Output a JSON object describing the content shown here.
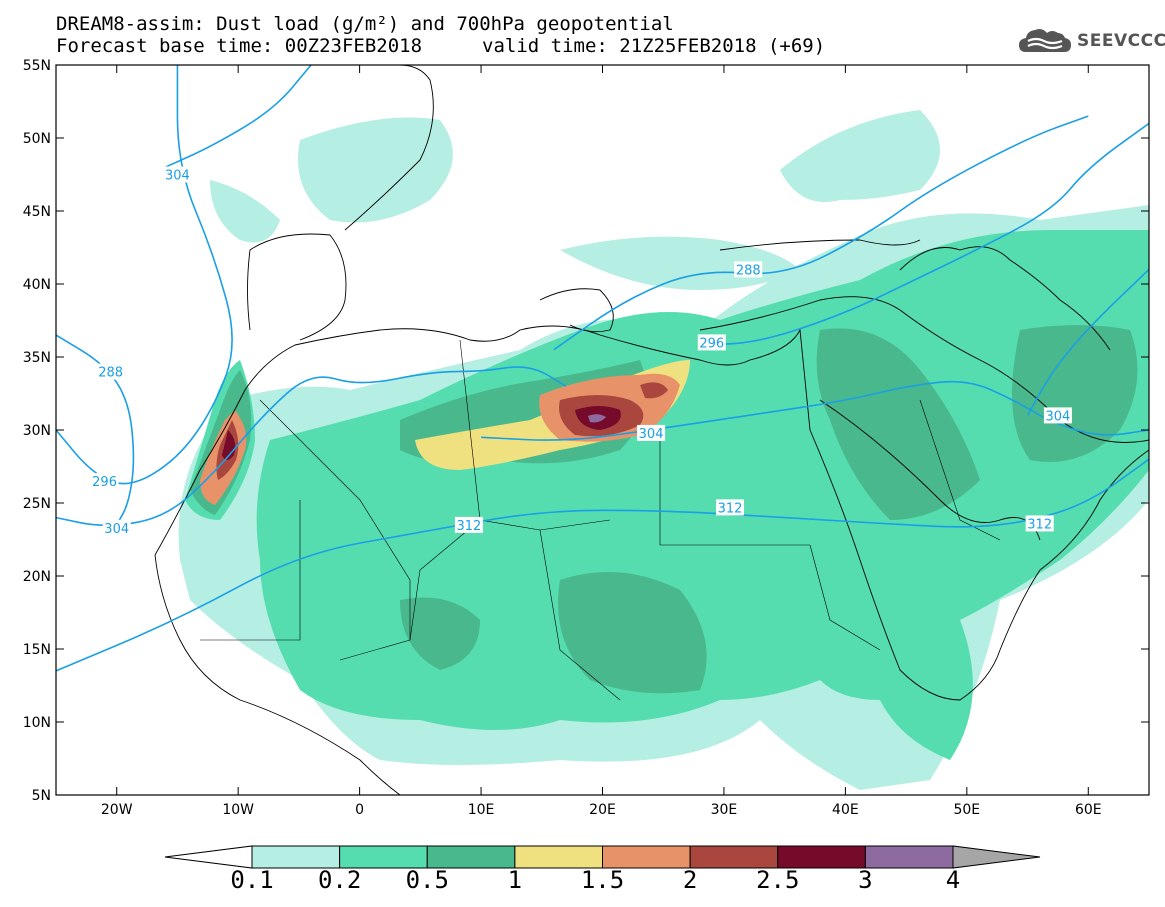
{
  "title": {
    "line1": "DREAM8-assim: Dust load (g/m²) and 700hPa geopotential",
    "line2_left": "Forecast base time: 00Z23FEB2018",
    "line2_right": "valid time: 21Z25FEB2018 (+69)"
  },
  "logo": {
    "text": "SEEVCCC",
    "icon": "cloud-icon",
    "color": "#555555"
  },
  "map": {
    "lon_range": [
      -25,
      65
    ],
    "lat_range": [
      5,
      55
    ],
    "lat_ticks": [
      {
        "value": 55,
        "label": "55N"
      },
      {
        "value": 50,
        "label": "50N"
      },
      {
        "value": 45,
        "label": "45N"
      },
      {
        "value": 40,
        "label": "40N"
      },
      {
        "value": 35,
        "label": "35N"
      },
      {
        "value": 30,
        "label": "30N"
      },
      {
        "value": 25,
        "label": "25N"
      },
      {
        "value": 20,
        "label": "20N"
      },
      {
        "value": 15,
        "label": "15N"
      },
      {
        "value": 10,
        "label": "10N"
      },
      {
        "value": 5,
        "label": "5N"
      }
    ],
    "lon_ticks": [
      {
        "value": -20,
        "label": "20W"
      },
      {
        "value": -10,
        "label": "10W"
      },
      {
        "value": 0,
        "label": "0"
      },
      {
        "value": 10,
        "label": "10E"
      },
      {
        "value": 20,
        "label": "20E"
      },
      {
        "value": 30,
        "label": "30E"
      },
      {
        "value": 40,
        "label": "40E"
      },
      {
        "value": 50,
        "label": "50E"
      },
      {
        "value": 60,
        "label": "60E"
      }
    ],
    "contour_color": "#1a9fe6",
    "contours": [
      {
        "value": 288,
        "label": "288",
        "label_pos": [
          -20.5,
          34
        ],
        "path": [
          [
            -25,
            36.5
          ],
          [
            -21,
            34.5
          ],
          [
            -19,
            32
          ],
          [
            -18.5,
            28
          ],
          [
            -19,
            25
          ],
          [
            -20,
            23.5
          ]
        ]
      },
      {
        "value": 288,
        "label": "288",
        "label_pos": [
          32,
          41
        ],
        "path": [
          [
            16,
            35.5
          ],
          [
            22,
            39
          ],
          [
            28,
            41
          ],
          [
            35,
            40.5
          ],
          [
            42,
            43.5
          ],
          [
            47,
            46.5
          ],
          [
            55,
            50
          ],
          [
            60,
            51.5
          ]
        ]
      },
      {
        "value": 296,
        "label": "296",
        "label_pos": [
          -21,
          26.5
        ],
        "path": [
          [
            -25,
            30
          ],
          [
            -22,
            27
          ],
          [
            -19,
            26
          ],
          [
            -15,
            28
          ],
          [
            -12,
            31.5
          ],
          [
            -10,
            36
          ],
          [
            -12,
            42
          ],
          [
            -15,
            48
          ],
          [
            -15,
            55
          ]
        ]
      },
      {
        "value": 296,
        "label": "296",
        "label_pos": [
          29,
          36
        ],
        "path": [
          [
            28,
            35.8
          ],
          [
            33,
            36
          ],
          [
            40,
            38
          ],
          [
            45,
            40
          ],
          [
            50,
            42
          ],
          [
            57,
            45
          ],
          [
            60,
            48
          ],
          [
            65,
            51
          ]
        ]
      },
      {
        "value": 304,
        "label": "304",
        "label_pos": [
          -20,
          23.3
        ],
        "path": [
          [
            -25,
            24
          ],
          [
            -21,
            23.3
          ],
          [
            -16,
            24
          ],
          [
            -12,
            27
          ],
          [
            -8,
            31
          ],
          [
            -4,
            34
          ],
          [
            0,
            33
          ],
          [
            6,
            34
          ],
          [
            10,
            34
          ],
          [
            14,
            34.5
          ],
          [
            17,
            33
          ]
        ]
      },
      {
        "value": 304,
        "label": "304",
        "label_pos": [
          -15,
          47.5
        ],
        "path": [
          [
            -16,
            48
          ],
          [
            -12,
            49.5
          ],
          [
            -7,
            52
          ],
          [
            -4,
            55
          ]
        ]
      },
      {
        "value": 304,
        "label": "304",
        "label_pos": [
          24,
          29.8
        ],
        "path": [
          [
            10,
            29.5
          ],
          [
            17,
            29.2
          ],
          [
            24,
            30
          ],
          [
            32,
            31
          ],
          [
            40,
            32
          ],
          [
            45,
            33
          ],
          [
            50,
            33.5
          ],
          [
            54,
            32
          ],
          [
            57,
            30.5
          ],
          [
            61,
            29.5
          ],
          [
            65,
            30
          ]
        ]
      },
      {
        "value": 304,
        "label": "304",
        "label_pos": [
          57.5,
          31
        ],
        "path": [
          [
            65,
            41
          ],
          [
            60,
            37
          ],
          [
            57,
            34
          ],
          [
            55,
            31
          ]
        ]
      },
      {
        "value": 312,
        "label": "312",
        "label_pos": [
          9,
          23.5
        ],
        "path": [
          [
            -25,
            13.5
          ],
          [
            -15,
            17
          ],
          [
            -5,
            21.5
          ],
          [
            5,
            23
          ],
          [
            15,
            24.5
          ],
          [
            25,
            24.5
          ],
          [
            35,
            24
          ],
          [
            45,
            23.5
          ],
          [
            50,
            23.3
          ],
          [
            55,
            23.7
          ],
          [
            60,
            25
          ],
          [
            65,
            28
          ]
        ]
      },
      {
        "value": 312,
        "label": "312",
        "label_pos": [
          30.5,
          24.7
        ],
        "path": []
      },
      {
        "value": 312,
        "label": "312",
        "label_pos": [
          56,
          23.6
        ],
        "path": []
      }
    ]
  },
  "colorbar": {
    "levels": [
      "0.1",
      "0.2",
      "0.5",
      "1",
      "1.5",
      "2",
      "2.5",
      "3",
      "4"
    ],
    "colors": [
      "#b5eee2",
      "#55ddb0",
      "#4ab88d",
      "#f0e180",
      "#e8926a",
      "#a9473f",
      "#760a2b",
      "#8d6a9f"
    ],
    "under_color": "#ffffff",
    "over_color": "#a6a6a6"
  }
}
